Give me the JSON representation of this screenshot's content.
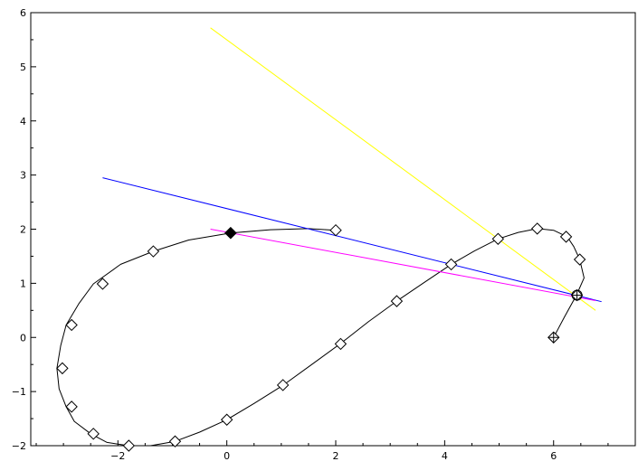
{
  "chart_data": {
    "type": "line",
    "title": "",
    "xlabel": "",
    "ylabel": "",
    "xlim": [
      -3.6,
      7.5
    ],
    "ylim": [
      -2,
      6
    ],
    "grid": false,
    "x_ticks": [
      -2,
      0,
      2,
      4,
      6
    ],
    "x_tick_labels": [
      "−2",
      "0",
      "2",
      "4",
      "6"
    ],
    "y_ticks": [
      -2,
      -1,
      0,
      1,
      2,
      3,
      4,
      5,
      6
    ],
    "y_tick_labels": [
      "−2",
      "−1",
      "0",
      "1",
      "2",
      "3",
      "4",
      "5",
      "6"
    ],
    "series": [
      {
        "kind": "curve",
        "color": "#000000",
        "points": [
          [
            6.0,
            0.0
          ],
          [
            6.2,
            0.38
          ],
          [
            6.42,
            0.78
          ],
          [
            6.56,
            1.1
          ],
          [
            6.48,
            1.44
          ],
          [
            6.37,
            1.68
          ],
          [
            6.25,
            1.86
          ],
          [
            6.0,
            1.98
          ],
          [
            5.7,
            2.01
          ],
          [
            5.35,
            1.94
          ],
          [
            4.98,
            1.82
          ],
          [
            4.55,
            1.6
          ],
          [
            4.12,
            1.35
          ],
          [
            3.6,
            1.0
          ],
          [
            3.12,
            0.67
          ],
          [
            2.6,
            0.29
          ],
          [
            2.08,
            -0.12
          ],
          [
            1.56,
            -0.5
          ],
          [
            1.04,
            -0.88
          ],
          [
            0.5,
            -1.22
          ],
          [
            0.0,
            -1.52
          ],
          [
            -0.5,
            -1.75
          ],
          [
            -0.95,
            -1.92
          ],
          [
            -1.4,
            -2.0
          ],
          [
            -1.8,
            -2.0
          ],
          [
            -2.2,
            -1.94
          ],
          [
            -2.5,
            -1.78
          ],
          [
            -2.8,
            -1.55
          ],
          [
            -2.95,
            -1.28
          ],
          [
            -3.08,
            -0.95
          ],
          [
            -3.12,
            -0.57
          ],
          [
            -3.05,
            -0.15
          ],
          [
            -2.95,
            0.23
          ],
          [
            -2.72,
            0.62
          ],
          [
            -2.45,
            0.99
          ],
          [
            -1.95,
            1.35
          ],
          [
            -1.35,
            1.59
          ],
          [
            -0.7,
            1.8
          ],
          [
            0.07,
            1.93
          ],
          [
            0.8,
            1.99
          ],
          [
            1.5,
            2.01
          ],
          [
            2.0,
            1.98
          ]
        ]
      },
      {
        "kind": "markers",
        "marker": "diamond",
        "points": [
          [
            6.0,
            0.0
          ],
          [
            6.43,
            0.78
          ],
          [
            6.48,
            1.44
          ],
          [
            6.23,
            1.86
          ],
          [
            5.7,
            2.01
          ],
          [
            4.98,
            1.82
          ],
          [
            4.12,
            1.35
          ],
          [
            3.12,
            0.67
          ],
          [
            2.09,
            -0.12
          ],
          [
            1.03,
            -0.88
          ],
          [
            0.0,
            -1.52
          ],
          [
            -0.95,
            -1.92
          ],
          [
            -1.8,
            -2.0
          ],
          [
            -2.45,
            -1.78
          ],
          [
            -2.85,
            -1.28
          ],
          [
            -3.02,
            -0.57
          ],
          [
            -2.85,
            0.23
          ],
          [
            -2.28,
            0.99
          ],
          [
            -1.35,
            1.59
          ],
          [
            0.07,
            1.93
          ],
          [
            2.0,
            1.98
          ]
        ]
      },
      {
        "kind": "markers",
        "marker": "diamond-filled",
        "points": [
          [
            0.07,
            1.93
          ]
        ]
      },
      {
        "kind": "markers",
        "marker": "circle-plus",
        "points": [
          [
            6.43,
            0.78
          ]
        ]
      },
      {
        "kind": "markers",
        "marker": "diamond-plus",
        "points": [
          [
            6.0,
            0.0
          ]
        ]
      },
      {
        "kind": "segment",
        "color": "#ffff00",
        "points": [
          [
            -0.3,
            5.72
          ],
          [
            6.77,
            0.5
          ]
        ]
      },
      {
        "kind": "segment",
        "color": "#0000ff",
        "points": [
          [
            -2.28,
            2.95
          ],
          [
            6.88,
            0.66
          ]
        ]
      },
      {
        "kind": "segment",
        "color": "#ff00ff",
        "points": [
          [
            -0.3,
            2.0
          ],
          [
            6.77,
            0.68
          ]
        ]
      }
    ]
  }
}
